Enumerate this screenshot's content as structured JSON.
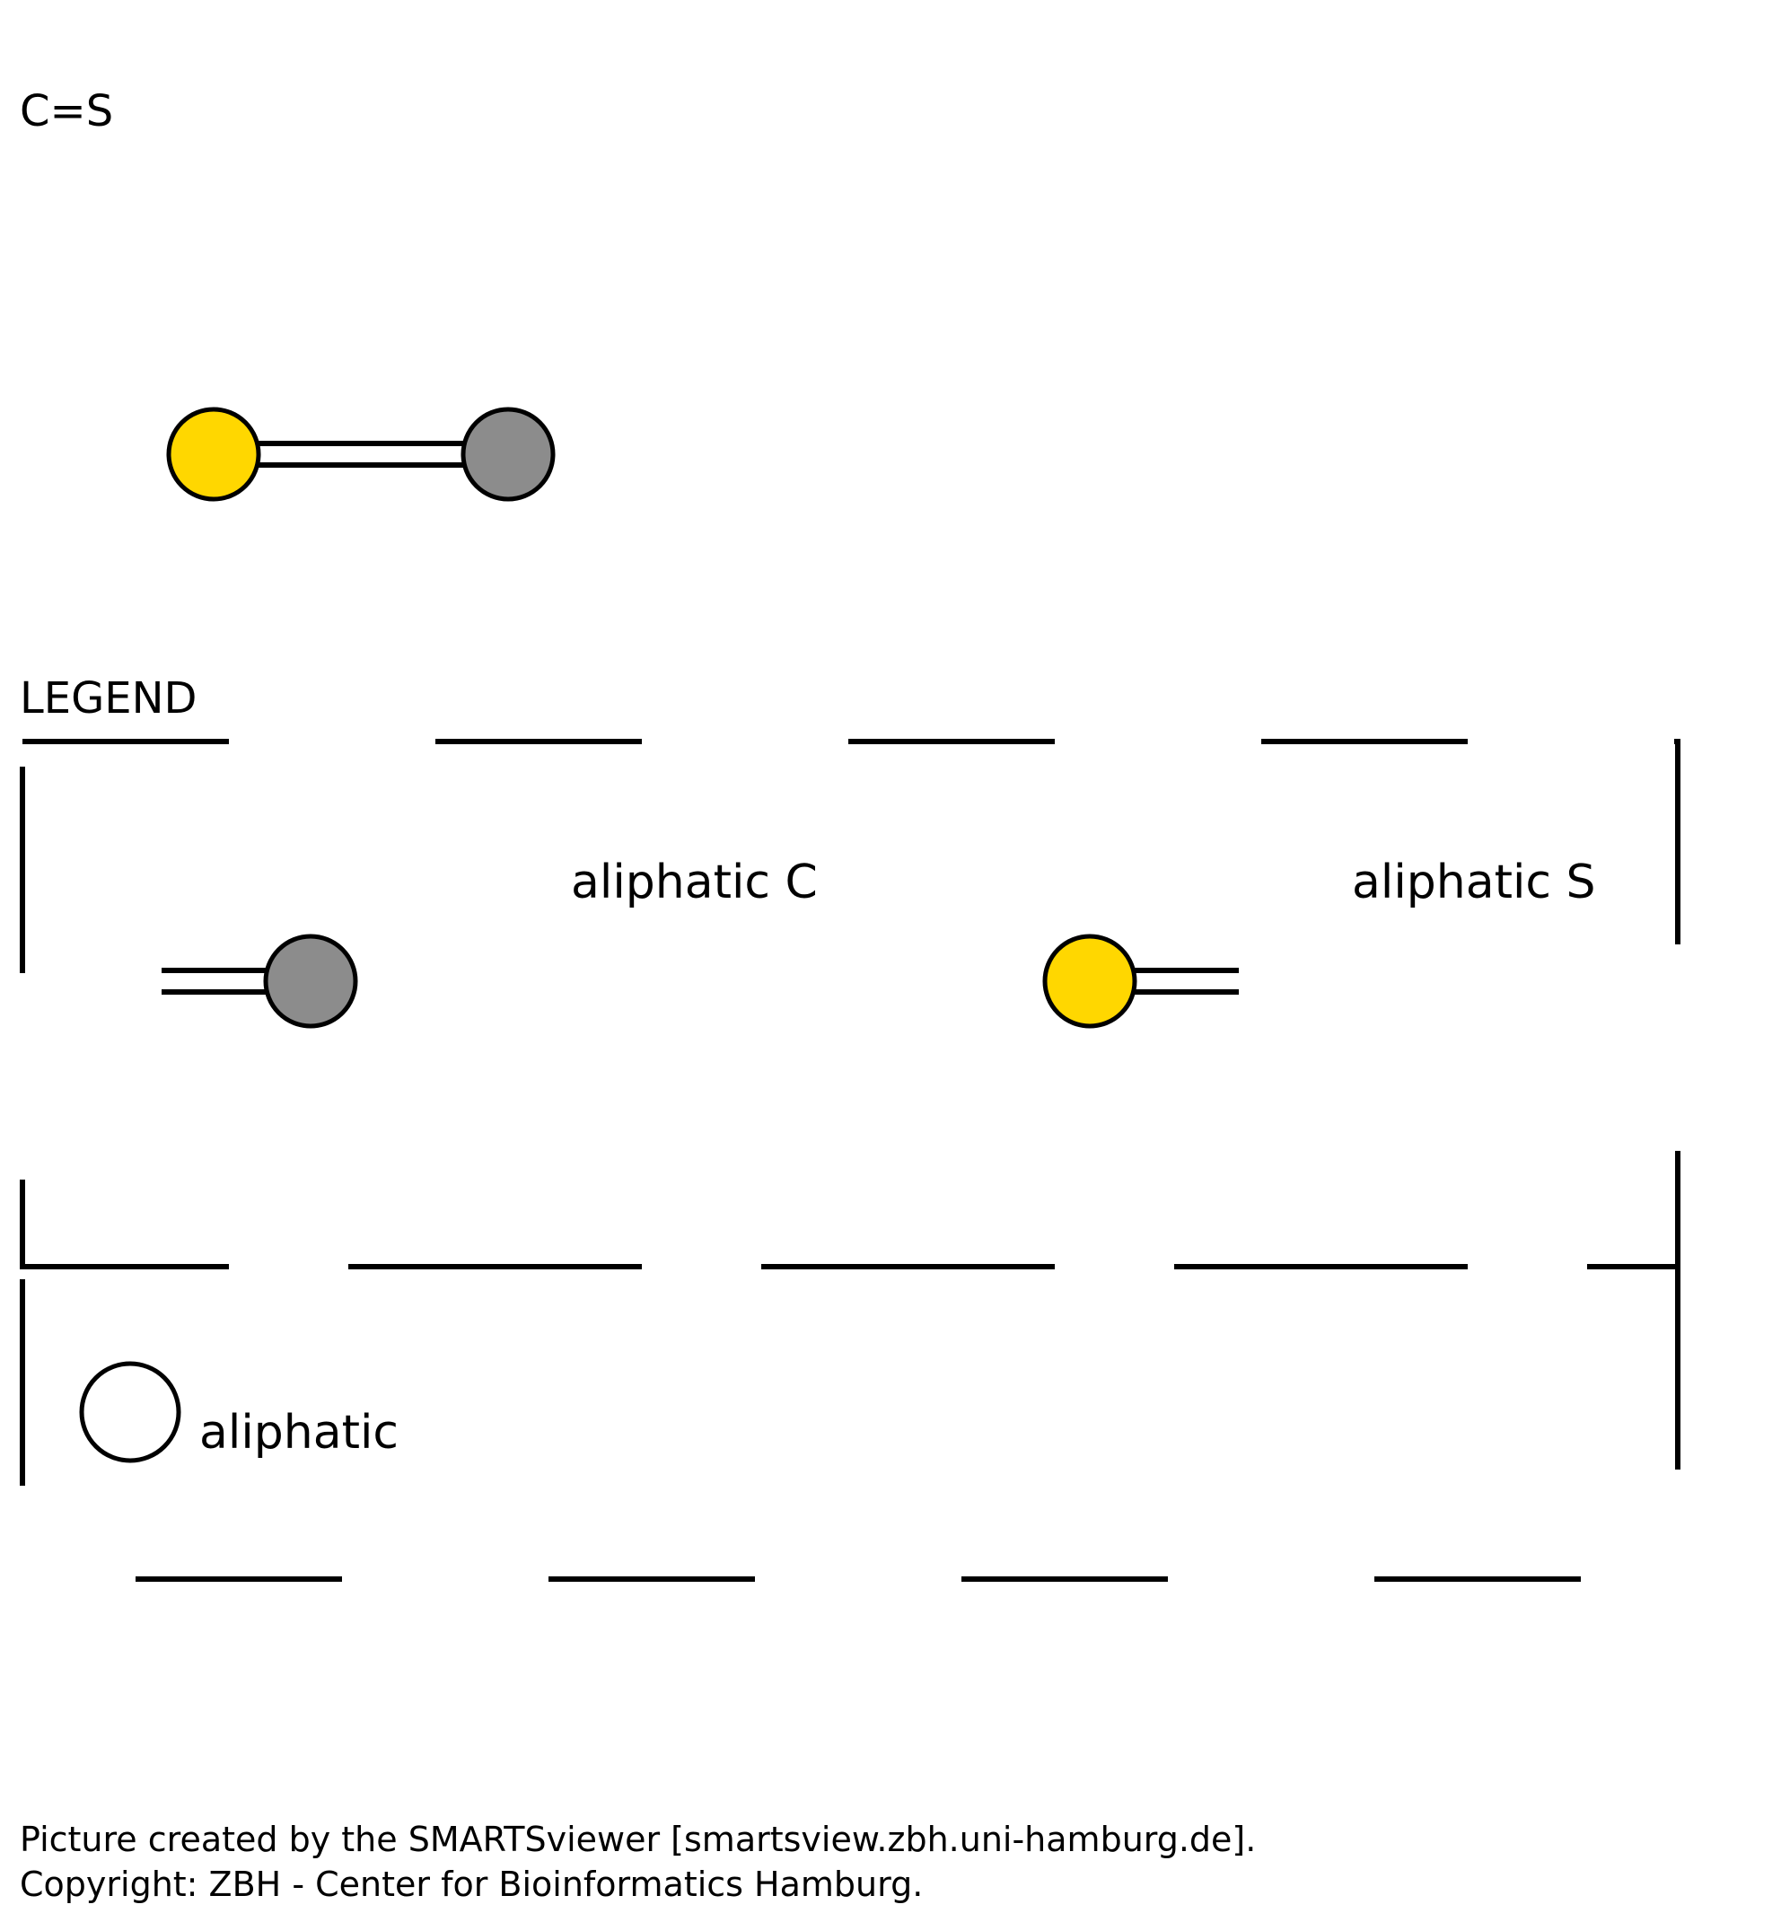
{
  "smarts": "C=S",
  "legend": {
    "title": "LEGEND",
    "atoms": [
      {
        "label": "aliphatic C",
        "element": "C",
        "color": "#8c8c8c"
      },
      {
        "label": "aliphatic S",
        "element": "S",
        "color": "#ffd700"
      }
    ],
    "aromaticity": [
      {
        "label": "aliphatic",
        "color": "#ffffff"
      }
    ]
  },
  "molecule": {
    "atoms": [
      {
        "element": "S",
        "color": "#ffd700"
      },
      {
        "element": "C",
        "color": "#8c8c8c"
      }
    ],
    "bonds": [
      {
        "from": 0,
        "to": 1,
        "order": 2
      }
    ]
  },
  "footer": {
    "line1": "Picture created by the SMARTSviewer [smartsview.zbh.uni-hamburg.de].",
    "line2": "Copyright: ZBH - Center for Bioinformatics Hamburg."
  }
}
